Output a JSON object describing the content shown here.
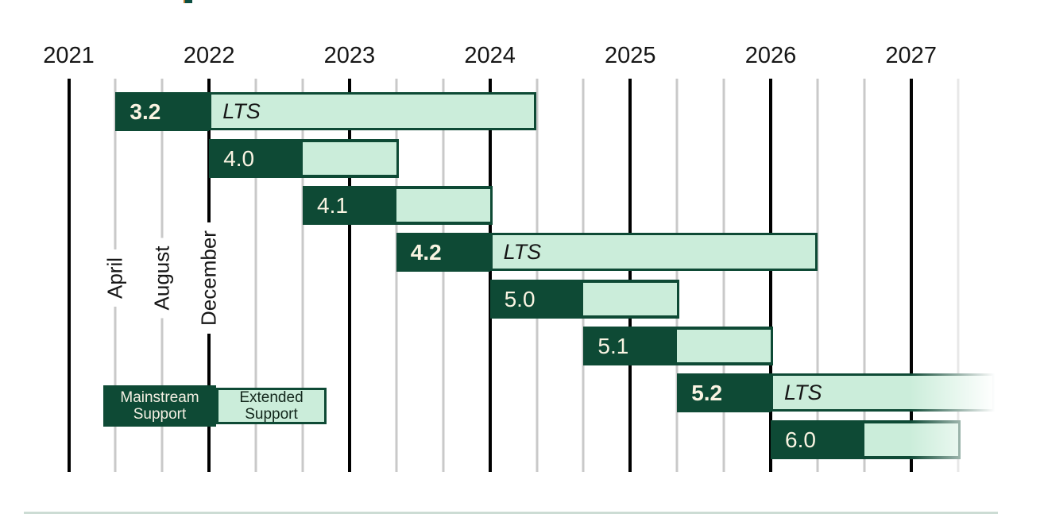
{
  "chart_data": {
    "type": "gantt",
    "x_axis": {
      "years": [
        "2021",
        "2022",
        "2023",
        "2024",
        "2025",
        "2026",
        "2027"
      ],
      "range": [
        "2021-01",
        "2027-08"
      ],
      "gridlines": "black vertical line per year; gray vertical lines at April and August positions",
      "month_tick_labels": [
        {
          "label": "April",
          "at": "2021-04"
        },
        {
          "label": "August",
          "at": "2021-08"
        },
        {
          "label": "December",
          "at": "2021-12"
        }
      ]
    },
    "bars": [
      {
        "version": "3.2",
        "lts": true,
        "lts_tag": "LTS",
        "release": "2021-04",
        "mainstream_support_until": "2021-12",
        "extended_support_until": "2024-04",
        "fades_out_right": false
      },
      {
        "version": "4.0",
        "lts": false,
        "lts_tag": "",
        "release": "2021-12",
        "mainstream_support_until": "2022-08",
        "extended_support_until": "2023-04",
        "fades_out_right": false
      },
      {
        "version": "4.1",
        "lts": false,
        "lts_tag": "",
        "release": "2022-08",
        "mainstream_support_until": "2023-04",
        "extended_support_until": "2023-12",
        "fades_out_right": false
      },
      {
        "version": "4.2",
        "lts": true,
        "lts_tag": "LTS",
        "release": "2023-04",
        "mainstream_support_until": "2023-12",
        "extended_support_until": "2026-04",
        "fades_out_right": false
      },
      {
        "version": "5.0",
        "lts": false,
        "lts_tag": "",
        "release": "2023-12",
        "mainstream_support_until": "2024-08",
        "extended_support_until": "2025-04",
        "fades_out_right": false
      },
      {
        "version": "5.1",
        "lts": false,
        "lts_tag": "",
        "release": "2024-08",
        "mainstream_support_until": "2025-04",
        "extended_support_until": "2025-12",
        "fades_out_right": false
      },
      {
        "version": "5.2",
        "lts": true,
        "lts_tag": "LTS",
        "release": "2025-04",
        "mainstream_support_until": "2025-12",
        "extended_support_until": "beyond-chart",
        "fades_out_right": true
      },
      {
        "version": "6.0",
        "lts": false,
        "lts_tag": "",
        "release": "2025-12",
        "mainstream_support_until": "2026-08",
        "extended_support_until": "2027-04",
        "fades_out_right": true
      }
    ],
    "legend": {
      "mainstream": {
        "line1": "Mainstream",
        "line2": "Support"
      },
      "extended": {
        "line1": "Extended",
        "line2": "Support"
      }
    },
    "colors": {
      "mainstream_dark_green": "#0e4a35",
      "extended_light_green": "#cbedda",
      "year_gridline": "#000000",
      "month_gridline": "#c9c9c9",
      "version_text": "#faf4e2",
      "lts_text": "#161616",
      "axis_text": "#161616",
      "legend_dark_text": "#f3efe2",
      "legend_light_text": "#13271c",
      "bottom_divider": "#ccdcd4"
    },
    "layout_hints": {
      "legend_position": "bottom-left",
      "bars_order_top_to_bottom": [
        "3.2",
        "4.0",
        "4.1",
        "4.2",
        "5.0",
        "5.1",
        "5.2",
        "6.0"
      ],
      "grid": "on"
    }
  }
}
